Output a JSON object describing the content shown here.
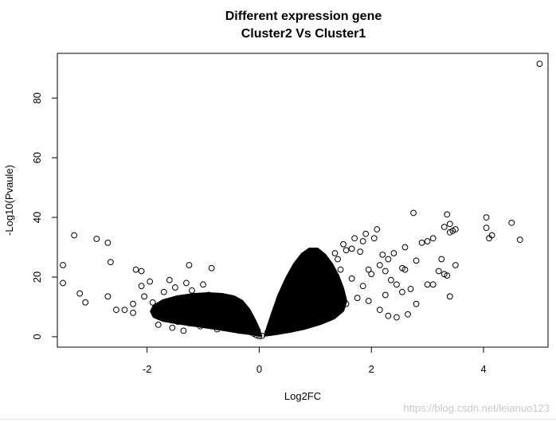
{
  "chart_data": {
    "type": "scatter",
    "title": "Different expression gene",
    "subtitle": "Cluster2 Vs Cluster1",
    "xlabel": "Log2FC",
    "ylabel": "-Log10(Pvaule)",
    "xlim": [
      -3.6,
      5.15
    ],
    "ylim": [
      -3.5,
      95
    ],
    "xticks": [
      -2,
      0,
      2,
      4
    ],
    "yticks": [
      0,
      20,
      40,
      60,
      80
    ],
    "grid": false,
    "marker": "open-circle",
    "series": [
      {
        "points": [
          [
            5.0,
            91.5
          ],
          [
            2.75,
            41.5
          ],
          [
            3.35,
            41.0
          ],
          [
            4.05,
            40.0
          ],
          [
            4.5,
            38.2
          ],
          [
            3.4,
            37.8
          ],
          [
            3.5,
            36.0
          ],
          [
            3.45,
            35.5
          ],
          [
            4.05,
            36.5
          ],
          [
            4.15,
            34.0
          ],
          [
            4.1,
            33.0
          ],
          [
            4.65,
            32.5
          ],
          [
            3.3,
            36.8
          ],
          [
            3.4,
            35.0
          ],
          [
            3.1,
            33.0
          ],
          [
            3.0,
            32.0
          ],
          [
            2.9,
            31.5
          ],
          [
            3.25,
            26.0
          ],
          [
            3.5,
            24.0
          ],
          [
            3.2,
            22.0
          ],
          [
            3.35,
            20.5
          ],
          [
            3.3,
            21.0
          ],
          [
            3.1,
            17.5
          ],
          [
            3.0,
            17.5
          ],
          [
            3.4,
            13.5
          ],
          [
            2.8,
            11.0
          ],
          [
            2.65,
            7.5
          ],
          [
            2.45,
            6.5
          ],
          [
            2.55,
            15.0
          ],
          [
            2.7,
            16.0
          ],
          [
            2.6,
            30.0
          ],
          [
            2.4,
            28.0
          ],
          [
            2.55,
            23.0
          ],
          [
            2.1,
            36.0
          ],
          [
            2.05,
            33.0
          ],
          [
            1.9,
            34.5
          ],
          [
            1.85,
            32.0
          ],
          [
            1.7,
            33.0
          ],
          [
            1.65,
            29.5
          ],
          [
            1.55,
            29.0
          ],
          [
            1.8,
            28.5
          ],
          [
            2.2,
            27.5
          ],
          [
            2.3,
            26.0
          ],
          [
            2.15,
            24.0
          ],
          [
            2.25,
            22.0
          ],
          [
            2.0,
            21.0
          ],
          [
            2.35,
            19.0
          ],
          [
            2.45,
            17.5
          ],
          [
            2.6,
            22.5
          ],
          [
            2.8,
            25.5
          ],
          [
            2.25,
            14.0
          ],
          [
            2.15,
            9.0
          ],
          [
            2.3,
            7.0
          ],
          [
            1.95,
            12.0
          ],
          [
            1.4,
            26.0
          ],
          [
            1.35,
            28.0
          ],
          [
            1.5,
            31.0
          ],
          [
            1.25,
            24.0
          ],
          [
            1.45,
            22.5
          ],
          [
            1.2,
            20.0
          ],
          [
            1.35,
            18.5
          ],
          [
            -3.5,
            24.0
          ],
          [
            -3.5,
            18.0
          ],
          [
            -3.3,
            34.0
          ],
          [
            -2.9,
            32.8
          ],
          [
            -2.7,
            31.5
          ],
          [
            -2.65,
            25.0
          ],
          [
            -3.2,
            14.5
          ],
          [
            -3.1,
            11.5
          ],
          [
            -2.7,
            13.5
          ],
          [
            -2.55,
            9.0
          ],
          [
            -2.4,
            9.0
          ],
          [
            -2.25,
            11.0
          ],
          [
            -2.2,
            22.5
          ],
          [
            -2.1,
            22.0
          ],
          [
            -1.25,
            24.0
          ],
          [
            -0.85,
            23.0
          ],
          [
            -2.05,
            13.5
          ],
          [
            -2.1,
            17.0
          ],
          [
            -1.95,
            18.5
          ],
          [
            -1.9,
            11.5
          ],
          [
            -2.25,
            8.0
          ],
          [
            -1.8,
            4.0
          ],
          [
            -1.7,
            15.0
          ],
          [
            -1.6,
            19.0
          ],
          [
            -1.5,
            16.5
          ],
          [
            -1.4,
            12.0
          ],
          [
            -1.3,
            18.0
          ],
          [
            -1.2,
            15.5
          ],
          [
            -1.0,
            17.5
          ],
          [
            -0.9,
            14.0
          ],
          [
            -0.75,
            12.0
          ],
          [
            -1.65,
            6.5
          ],
          [
            -1.55,
            3.0
          ],
          [
            -1.35,
            2.0
          ],
          [
            -1.55,
            7.5
          ],
          [
            -1.45,
            5.0
          ],
          [
            -1.35,
            9.0
          ],
          [
            -1.25,
            4.5
          ],
          [
            -1.15,
            6.0
          ],
          [
            -1.05,
            3.5
          ],
          [
            -0.95,
            8.0
          ],
          [
            -0.85,
            5.5
          ],
          [
            -0.75,
            2.5
          ],
          [
            -0.65,
            6.5
          ],
          [
            -0.55,
            3.0
          ],
          [
            -0.45,
            5.0
          ],
          [
            -0.35,
            2.0
          ],
          [
            -0.25,
            3.5
          ],
          [
            -0.15,
            1.5
          ],
          [
            -0.05,
            0.5
          ],
          [
            0.05,
            0.3
          ],
          [
            0.15,
            1.5
          ],
          [
            0.25,
            3.0
          ],
          [
            0.35,
            4.5
          ],
          [
            0.45,
            2.5
          ],
          [
            0.55,
            6.5
          ],
          [
            0.65,
            9.0
          ],
          [
            0.75,
            4.0
          ],
          [
            0.85,
            12.0
          ],
          [
            0.95,
            7.0
          ],
          [
            1.05,
            15.0
          ],
          [
            1.15,
            10.0
          ],
          [
            1.25,
            13.5
          ],
          [
            1.35,
            8.0
          ],
          [
            1.45,
            16.0
          ],
          [
            1.55,
            11.0
          ],
          [
            1.65,
            19.5
          ],
          [
            1.75,
            13.0
          ],
          [
            1.85,
            17.0
          ],
          [
            1.95,
            22.5
          ],
          [
            0.9,
            22.0
          ],
          [
            1.0,
            19.5
          ],
          [
            0.8,
            17.5
          ],
          [
            0.7,
            15.0
          ],
          [
            0.6,
            11.5
          ],
          [
            0.5,
            8.5
          ],
          [
            0.4,
            6.5
          ],
          [
            0.3,
            4.0
          ],
          [
            -0.6,
            9.5
          ],
          [
            -0.5,
            7.0
          ],
          [
            -0.4,
            6.0
          ],
          [
            -0.3,
            4.5
          ],
          [
            -0.2,
            2.5
          ],
          [
            -0.1,
            1.0
          ],
          [
            0.0,
            0.2
          ]
        ]
      }
    ]
  },
  "watermark": "https://blog.csdn.net/leianuo123"
}
